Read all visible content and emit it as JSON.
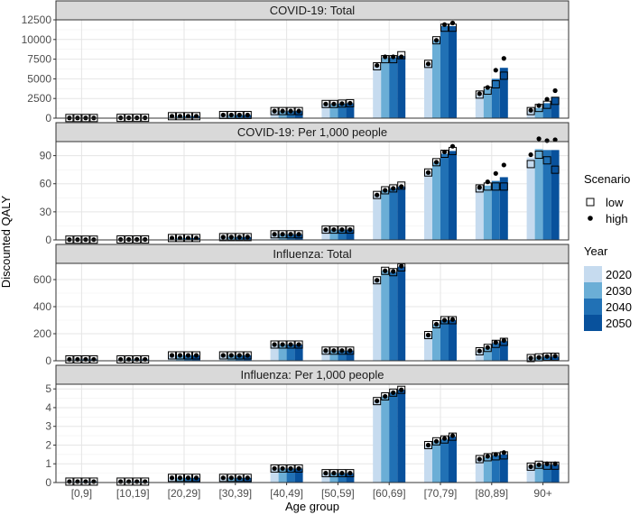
{
  "chart_data": {
    "type": "bar",
    "title": "",
    "xlabel": "Age group",
    "ylabel": "Discounted QALY",
    "categories": [
      "[0,9]",
      "[10,19]",
      "[20,29]",
      "[30,39]",
      "[40,49]",
      "[50,59]",
      "[60,69]",
      "[70,79]",
      "[80,89]",
      "90+"
    ],
    "years": [
      "2020",
      "2030",
      "2040",
      "2050"
    ],
    "year_colors": [
      "#c6dbef",
      "#6baed6",
      "#2171b5",
      "#08519c"
    ],
    "legend": {
      "scenario_title": "Scenario",
      "scenario_items": [
        {
          "label": "low",
          "shape": "open-square"
        },
        {
          "label": "high",
          "shape": "filled-circle"
        }
      ],
      "year_title": "Year",
      "position": "right"
    },
    "grid": true,
    "panels": [
      {
        "title": "COVID-19: Total",
        "ylim": [
          0,
          12500
        ],
        "yticks": [
          0,
          2500,
          5000,
          7500,
          10000,
          12500
        ],
        "ytick_labels": [
          "0",
          "2500",
          "5000",
          "7500",
          "10000",
          "12500"
        ],
        "values": [
          [
            20,
            20,
            20,
            20
          ],
          [
            40,
            40,
            40,
            40
          ],
          [
            250,
            250,
            250,
            250
          ],
          [
            400,
            400,
            400,
            400
          ],
          [
            900,
            900,
            900,
            900
          ],
          [
            1800,
            1800,
            1850,
            1900
          ],
          [
            6600,
            7700,
            7700,
            7900
          ],
          [
            6900,
            9900,
            11700,
            11700
          ],
          [
            3000,
            3700,
            5000,
            6400
          ],
          [
            900,
            1300,
            1900,
            2700
          ]
        ],
        "low": [
          [
            20,
            20,
            20,
            20
          ],
          [
            40,
            40,
            40,
            40
          ],
          [
            250,
            250,
            250,
            250
          ],
          [
            400,
            400,
            400,
            400
          ],
          [
            900,
            900,
            900,
            900
          ],
          [
            1800,
            1800,
            1850,
            1900
          ],
          [
            6600,
            7500,
            7500,
            8000
          ],
          [
            6900,
            9900,
            11500,
            11500
          ],
          [
            3000,
            3500,
            4300,
            5400
          ],
          [
            900,
            1300,
            1700,
            2200
          ]
        ],
        "high": [
          [
            20,
            20,
            20,
            20
          ],
          [
            40,
            40,
            40,
            40
          ],
          [
            250,
            250,
            250,
            250
          ],
          [
            400,
            400,
            400,
            400
          ],
          [
            900,
            900,
            900,
            900
          ],
          [
            1800,
            1800,
            1850,
            1900
          ],
          [
            6700,
            7800,
            7800,
            7800
          ],
          [
            6900,
            9900,
            11900,
            12100
          ],
          [
            3100,
            3900,
            6100,
            7600
          ],
          [
            1000,
            1600,
            2400,
            3500
          ]
        ]
      },
      {
        "title": "COVID-19: Per 1,000 people",
        "ylim": [
          0,
          105
        ],
        "yticks": [
          0,
          30,
          60,
          90
        ],
        "ytick_labels": [
          "0",
          "30",
          "60",
          "90"
        ],
        "values": [
          [
            0.3,
            0.3,
            0.3,
            0.3
          ],
          [
            0.5,
            0.5,
            0.5,
            0.5
          ],
          [
            2,
            2,
            2,
            2
          ],
          [
            3,
            3,
            3,
            3
          ],
          [
            6,
            6,
            6,
            6
          ],
          [
            11,
            11,
            11,
            11
          ],
          [
            48,
            53,
            55,
            57
          ],
          [
            72,
            83,
            92,
            95
          ],
          [
            55,
            58,
            63,
            67
          ],
          [
            88,
            97,
            96,
            96
          ]
        ],
        "low": [
          [
            0.3,
            0.3,
            0.3,
            0.3
          ],
          [
            0.5,
            0.5,
            0.5,
            0.5
          ],
          [
            2,
            2,
            2,
            2
          ],
          [
            3,
            3,
            3,
            3
          ],
          [
            6,
            6,
            6,
            6
          ],
          [
            11,
            11,
            11,
            11
          ],
          [
            48,
            53,
            55,
            58
          ],
          [
            72,
            83,
            92,
            95
          ],
          [
            55,
            57,
            57,
            57
          ],
          [
            81,
            91,
            85,
            75
          ]
        ],
        "high": [
          [
            0.3,
            0.3,
            0.3,
            0.3
          ],
          [
            0.5,
            0.5,
            0.5,
            0.5
          ],
          [
            2,
            2,
            2,
            2
          ],
          [
            3,
            3,
            3,
            3
          ],
          [
            6,
            6,
            6,
            6
          ],
          [
            11,
            11,
            11,
            11
          ],
          [
            48,
            53,
            55,
            57
          ],
          [
            72,
            83,
            94,
            100
          ],
          [
            56,
            62,
            71,
            80
          ],
          [
            91,
            108,
            106,
            107
          ]
        ]
      },
      {
        "title": "Influenza: Total",
        "ylim": [
          0,
          720
        ],
        "yticks": [
          0,
          200,
          400,
          600
        ],
        "ytick_labels": [
          "0",
          "200",
          "400",
          "600"
        ],
        "values": [
          [
            10,
            10,
            10,
            10
          ],
          [
            10,
            10,
            10,
            10
          ],
          [
            40,
            40,
            40,
            40
          ],
          [
            40,
            40,
            40,
            40
          ],
          [
            120,
            120,
            120,
            120
          ],
          [
            75,
            75,
            75,
            75
          ],
          [
            595,
            665,
            655,
            695
          ],
          [
            190,
            270,
            300,
            300
          ],
          [
            70,
            95,
            130,
            145
          ],
          [
            20,
            25,
            30,
            30
          ]
        ],
        "low": [
          [
            10,
            10,
            10,
            10
          ],
          [
            10,
            10,
            10,
            10
          ],
          [
            40,
            40,
            40,
            40
          ],
          [
            40,
            40,
            40,
            40
          ],
          [
            120,
            120,
            120,
            120
          ],
          [
            75,
            75,
            75,
            75
          ],
          [
            595,
            665,
            655,
            690
          ],
          [
            190,
            270,
            300,
            300
          ],
          [
            70,
            95,
            125,
            140
          ],
          [
            20,
            25,
            30,
            30
          ]
        ],
        "high": [
          [
            10,
            10,
            10,
            10
          ],
          [
            10,
            10,
            10,
            10
          ],
          [
            40,
            40,
            40,
            40
          ],
          [
            40,
            40,
            40,
            40
          ],
          [
            120,
            120,
            120,
            120
          ],
          [
            75,
            75,
            75,
            75
          ],
          [
            595,
            665,
            660,
            700
          ],
          [
            190,
            270,
            300,
            305
          ],
          [
            72,
            98,
            135,
            150
          ],
          [
            20,
            25,
            32,
            35
          ]
        ]
      },
      {
        "title": "Influenza: Per 1,000 people",
        "ylim": [
          0,
          5.25
        ],
        "yticks": [
          0,
          1,
          2,
          3,
          4,
          5
        ],
        "ytick_labels": [
          "0",
          "1",
          "2",
          "3",
          "4",
          "5"
        ],
        "values": [
          [
            0.05,
            0.05,
            0.05,
            0.05
          ],
          [
            0.05,
            0.05,
            0.05,
            0.05
          ],
          [
            0.25,
            0.25,
            0.25,
            0.25
          ],
          [
            0.25,
            0.25,
            0.25,
            0.25
          ],
          [
            0.75,
            0.75,
            0.75,
            0.75
          ],
          [
            0.5,
            0.5,
            0.5,
            0.5
          ],
          [
            4.35,
            4.6,
            4.8,
            4.95
          ],
          [
            2.0,
            2.2,
            2.3,
            2.45
          ],
          [
            1.25,
            1.35,
            1.45,
            1.5
          ],
          [
            0.85,
            0.95,
            0.95,
            0.95
          ]
        ],
        "low": [
          [
            0.05,
            0.05,
            0.05,
            0.05
          ],
          [
            0.05,
            0.05,
            0.05,
            0.05
          ],
          [
            0.25,
            0.25,
            0.25,
            0.25
          ],
          [
            0.25,
            0.25,
            0.25,
            0.25
          ],
          [
            0.75,
            0.75,
            0.75,
            0.75
          ],
          [
            0.5,
            0.5,
            0.5,
            0.5
          ],
          [
            4.35,
            4.6,
            4.8,
            4.95
          ],
          [
            2.0,
            2.2,
            2.3,
            2.45
          ],
          [
            1.25,
            1.35,
            1.4,
            1.45
          ],
          [
            0.85,
            0.95,
            0.9,
            0.9
          ]
        ],
        "high": [
          [
            0.05,
            0.05,
            0.05,
            0.05
          ],
          [
            0.05,
            0.05,
            0.05,
            0.05
          ],
          [
            0.25,
            0.25,
            0.25,
            0.25
          ],
          [
            0.25,
            0.25,
            0.25,
            0.25
          ],
          [
            0.75,
            0.75,
            0.75,
            0.75
          ],
          [
            0.5,
            0.5,
            0.5,
            0.5
          ],
          [
            4.35,
            4.6,
            4.8,
            4.95
          ],
          [
            2.0,
            2.2,
            2.35,
            2.5
          ],
          [
            1.25,
            1.4,
            1.5,
            1.6
          ],
          [
            0.85,
            0.95,
            1.0,
            1.0
          ]
        ]
      }
    ]
  }
}
